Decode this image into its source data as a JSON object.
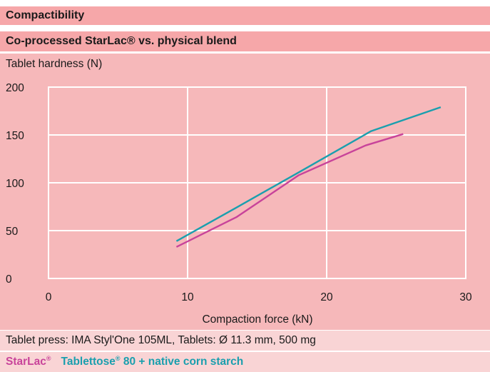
{
  "header": {
    "title": "Compactibility",
    "subtitle": "Co-processed StarLac® vs. physical blend"
  },
  "footer": {
    "note": "Tablet press: IMA Styl'One 105ML, Tablets: Ø 11.3 mm, 500 mg"
  },
  "colors": {
    "background": "#f6b8ba",
    "header_band": "#f6a7a9",
    "footer_band": "#f9d4d5",
    "grid": "#ffffff"
  },
  "chart_data": {
    "type": "line",
    "title": "Compactibility",
    "subtitle": "Co-processed StarLac® vs. physical blend",
    "xlabel": "Compaction force (kN)",
    "ylabel": "Tablet hardness (N)",
    "xlim": [
      0,
      30
    ],
    "ylim": [
      0,
      200
    ],
    "xticks": [
      0,
      10,
      20,
      30
    ],
    "yticks": [
      0,
      50,
      100,
      150,
      200
    ],
    "grid": true,
    "legend": "bottom",
    "series": [
      {
        "name": "StarLac®",
        "color": "#c8439a",
        "x": [
          9.2,
          13.5,
          18.0,
          22.8,
          25.5
        ],
        "y": [
          33,
          64,
          108,
          139,
          151
        ]
      },
      {
        "name": "Tablettose® 80 + native corn starch",
        "color": "#1a9fae",
        "x": [
          9.2,
          13.5,
          18.0,
          23.2,
          28.2
        ],
        "y": [
          39,
          74,
          111,
          154,
          179
        ]
      }
    ]
  }
}
